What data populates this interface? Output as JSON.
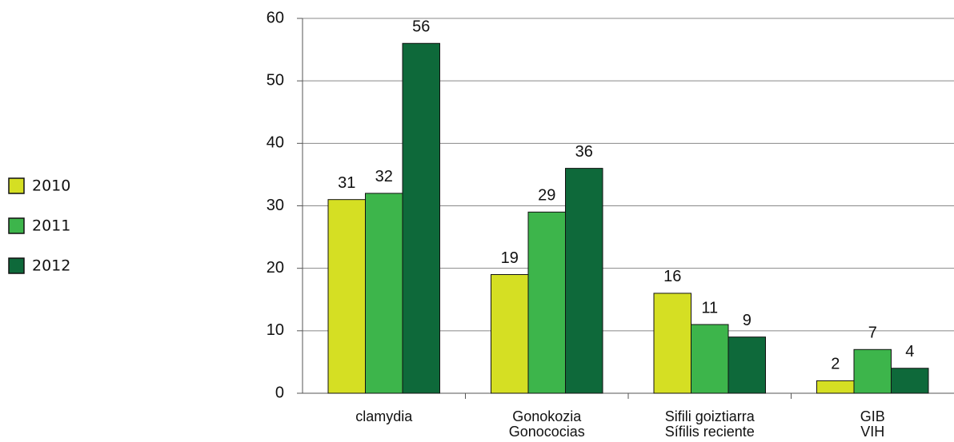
{
  "chart_data": {
    "type": "bar",
    "categories": [
      "clamydia",
      "Gonokozia\nGonococias",
      "Sifili goiztiarra\nSífilis reciente",
      "GIB\nVIH"
    ],
    "series": [
      {
        "name": "2010",
        "color": "#d5df23",
        "values": [
          31,
          19,
          16,
          2
        ]
      },
      {
        "name": "2011",
        "color": "#3db54b",
        "values": [
          32,
          29,
          11,
          7
        ]
      },
      {
        "name": "2012",
        "color": "#0e693a",
        "values": [
          56,
          36,
          9,
          4
        ]
      }
    ],
    "ylim": [
      0,
      60
    ],
    "yticks": [
      0,
      10,
      20,
      30,
      40,
      50,
      60
    ],
    "grid": true,
    "legend": "left"
  }
}
